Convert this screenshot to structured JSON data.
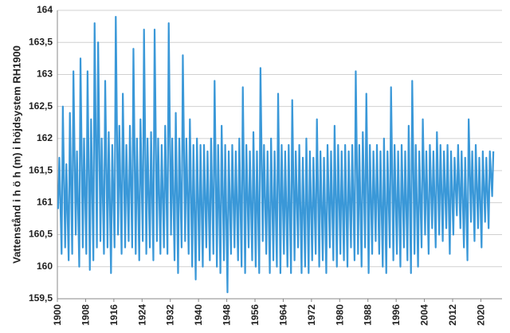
{
  "chart_data": {
    "type": "line",
    "y_label": "Vattenstånd i h ö h (m) i höjdsystem RH1900",
    "xlim": [
      1900,
      2026
    ],
    "xticks": [
      1900,
      1908,
      1916,
      1924,
      1932,
      1940,
      1948,
      1956,
      1964,
      1972,
      1980,
      1988,
      1996,
      2004,
      2012,
      2020
    ],
    "ylim": [
      159.5,
      164
    ],
    "yticks": [
      {
        "value": 159.5,
        "label": "159,5"
      },
      160,
      {
        "value": 160.5,
        "label": "160,5"
      },
      161,
      {
        "value": 161.5,
        "label": "161,5"
      },
      162,
      {
        "value": 162.5,
        "label": "162,5"
      },
      163,
      {
        "value": 163.5,
        "label": "163,5"
      },
      164
    ],
    "grid": true,
    "series": [
      {
        "color": "#3a98d8",
        "x": [
          1900.2,
          1900.55,
          1901.2,
          1901.55,
          1902.2,
          1902.55,
          1903.2,
          1903.55,
          1904.2,
          1904.55,
          1905.2,
          1905.55,
          1906.2,
          1906.55,
          1907.2,
          1907.55,
          1908.2,
          1908.55,
          1909.2,
          1909.55,
          1910.2,
          1910.55,
          1911.2,
          1911.55,
          1912.2,
          1912.55,
          1913.2,
          1913.55,
          1914.2,
          1914.55,
          1915.2,
          1915.55,
          1916.2,
          1916.55,
          1917.2,
          1917.55,
          1918.2,
          1918.55,
          1919.2,
          1919.55,
          1920.2,
          1920.55,
          1921.2,
          1921.55,
          1922.2,
          1922.55,
          1923.2,
          1923.55,
          1924.2,
          1924.55,
          1925.2,
          1925.55,
          1926.2,
          1926.55,
          1927.2,
          1927.55,
          1928.2,
          1928.55,
          1929.2,
          1929.55,
          1930.2,
          1930.55,
          1931.2,
          1931.55,
          1932.2,
          1932.55,
          1933.2,
          1933.55,
          1934.2,
          1934.55,
          1935.2,
          1935.55,
          1936.2,
          1936.55,
          1937.2,
          1937.55,
          1938.2,
          1938.55,
          1939.2,
          1939.55,
          1940.2,
          1940.55,
          1941.2,
          1941.55,
          1942.2,
          1942.55,
          1943.2,
          1943.55,
          1944.2,
          1944.55,
          1945.2,
          1945.55,
          1946.2,
          1946.55,
          1947.2,
          1947.55,
          1948.2,
          1948.55,
          1949.2,
          1949.55,
          1950.2,
          1950.55,
          1951.2,
          1951.55,
          1952.2,
          1952.55,
          1953.2,
          1953.55,
          1954.2,
          1954.55,
          1955.2,
          1955.55,
          1956.2,
          1956.55,
          1957.2,
          1957.55,
          1958.2,
          1958.55,
          1959.2,
          1959.55,
          1960.2,
          1960.55,
          1961.2,
          1961.55,
          1962.2,
          1962.55,
          1963.2,
          1963.55,
          1964.2,
          1964.55,
          1965.2,
          1965.55,
          1966.2,
          1966.55,
          1967.2,
          1967.55,
          1968.2,
          1968.55,
          1969.2,
          1969.55,
          1970.2,
          1970.55,
          1971.2,
          1971.55,
          1972.2,
          1972.55,
          1973.2,
          1973.55,
          1974.2,
          1974.55,
          1975.2,
          1975.55,
          1976.2,
          1976.55,
          1977.2,
          1977.55,
          1978.2,
          1978.55,
          1979.2,
          1979.55,
          1980.2,
          1980.55,
          1981.2,
          1981.55,
          1982.2,
          1982.55,
          1983.2,
          1983.55,
          1984.2,
          1984.55,
          1985.2,
          1985.55,
          1986.2,
          1986.55,
          1987.2,
          1987.55,
          1988.2,
          1988.55,
          1989.2,
          1989.55,
          1990.2,
          1990.55,
          1991.2,
          1991.55,
          1992.2,
          1992.55,
          1993.2,
          1993.55,
          1994.2,
          1994.55,
          1995.2,
          1995.55,
          1996.2,
          1996.55,
          1997.2,
          1997.55,
          1998.2,
          1998.55,
          1999.2,
          1999.55,
          2000.2,
          2000.55,
          2001.2,
          2001.55,
          2002.2,
          2002.55,
          2003.2,
          2003.55,
          2004.2,
          2004.55,
          2005.2,
          2005.55,
          2006.2,
          2006.55,
          2007.2,
          2007.55,
          2008.2,
          2008.55,
          2009.2,
          2009.55,
          2010.2,
          2010.55,
          2011.2,
          2011.55,
          2012.2,
          2012.55,
          2013.2,
          2013.55,
          2014.2,
          2014.55,
          2015.2,
          2015.55,
          2016.2,
          2016.55,
          2017.2,
          2017.55,
          2018.2,
          2018.55,
          2019.2,
          2019.55,
          2020.2,
          2020.55,
          2021.2,
          2021.55,
          2022.2,
          2022.55,
          2023.2,
          2023.55
        ],
        "values": [
          160.9,
          161.7,
          160.2,
          162.5,
          160.3,
          161.6,
          160.1,
          162.4,
          160.2,
          163.05,
          160.5,
          161.8,
          160.0,
          163.25,
          160.3,
          162.0,
          160.2,
          163.05,
          159.95,
          162.3,
          160.1,
          163.8,
          160.3,
          163.5,
          160.4,
          162.0,
          160.2,
          162.9,
          160.3,
          162.1,
          159.9,
          161.9,
          160.3,
          163.9,
          160.5,
          162.2,
          160.2,
          162.7,
          160.3,
          161.9,
          160.4,
          162.2,
          160.3,
          163.4,
          160.2,
          162.0,
          160.1,
          162.3,
          160.4,
          163.7,
          160.2,
          162.0,
          160.3,
          162.1,
          160.1,
          163.7,
          160.4,
          162.0,
          160.2,
          161.9,
          160.3,
          162.2,
          160.2,
          163.8,
          160.5,
          162.0,
          160.1,
          162.4,
          159.9,
          162.0,
          160.3,
          163.3,
          160.4,
          162.0,
          160.2,
          162.3,
          160.0,
          161.9,
          159.8,
          162.0,
          160.1,
          161.9,
          160.0,
          161.9,
          160.3,
          161.8,
          160.1,
          162.0,
          160.2,
          162.9,
          160.0,
          161.9,
          159.9,
          162.2,
          160.1,
          161.9,
          159.6,
          161.8,
          160.2,
          161.9,
          160.3,
          161.8,
          160.1,
          162.0,
          160.0,
          162.8,
          159.9,
          161.9,
          160.3,
          161.8,
          160.1,
          162.1,
          160.0,
          161.8,
          159.9,
          163.1,
          160.4,
          161.9,
          160.2,
          161.8,
          159.9,
          162.0,
          160.1,
          161.8,
          160.0,
          162.7,
          159.9,
          161.9,
          160.2,
          161.8,
          160.0,
          161.9,
          159.9,
          162.6,
          160.1,
          161.8,
          160.3,
          161.9,
          159.9,
          161.7,
          160.0,
          162.0,
          159.9,
          161.8,
          160.1,
          161.7,
          160.2,
          162.3,
          160.0,
          161.8,
          160.1,
          161.7,
          159.9,
          161.9,
          160.3,
          161.8,
          160.1,
          162.2,
          160.0,
          161.9,
          160.2,
          161.8,
          160.1,
          161.9,
          160.0,
          161.8,
          160.3,
          161.9,
          160.1,
          163.05,
          160.2,
          161.9,
          160.0,
          162.1,
          160.3,
          162.7,
          159.9,
          161.9,
          160.2,
          161.8,
          160.4,
          161.9,
          160.2,
          161.8,
          160.0,
          162.0,
          159.9,
          161.8,
          160.3,
          162.8,
          160.1,
          161.9,
          160.2,
          161.8,
          160.0,
          161.9,
          160.3,
          161.8,
          160.1,
          162.2,
          159.9,
          162.9,
          160.2,
          161.9,
          160.0,
          161.8,
          160.3,
          162.3,
          160.5,
          161.8,
          160.2,
          161.9,
          160.6,
          161.8,
          160.3,
          162.1,
          160.5,
          161.9,
          160.4,
          161.8,
          160.6,
          161.9,
          160.2,
          161.8,
          160.5,
          161.7,
          160.8,
          161.9,
          160.6,
          161.8,
          160.3,
          161.7,
          160.1,
          162.3,
          160.7,
          161.8,
          160.4,
          161.9,
          160.6,
          161.7,
          160.3,
          161.8,
          160.7,
          161.7,
          160.6,
          161.8,
          161.1,
          161.8
        ]
      }
    ]
  }
}
